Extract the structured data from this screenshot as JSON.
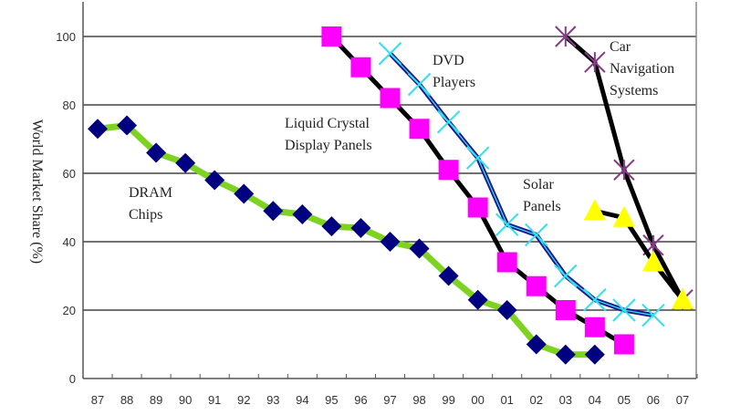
{
  "chart_data": {
    "type": "line",
    "title": "",
    "xlabel": "",
    "ylabel": "World Market Share (%)",
    "ylim": [
      0,
      110
    ],
    "yticks": [
      0,
      20,
      40,
      60,
      80,
      100
    ],
    "grid": true,
    "categories": [
      "87",
      "88",
      "89",
      "90",
      "91",
      "92",
      "93",
      "94",
      "95",
      "96",
      "97",
      "98",
      "99",
      "00",
      "01",
      "02",
      "03",
      "04",
      "05",
      "06",
      "07"
    ],
    "series": [
      {
        "name": "DRAM Chips",
        "label_lines": [
          "DRAM",
          "Chips"
        ],
        "marker": "diamond",
        "line_color": "#7ed321",
        "marker_color": "#000080",
        "values": [
          73,
          74,
          66,
          63,
          58,
          54,
          49,
          48,
          44.5,
          44,
          40,
          38,
          30,
          23,
          20,
          10,
          7,
          7,
          null,
          null,
          null
        ]
      },
      {
        "name": "Liquid Crystal Display Panels",
        "label_lines": [
          "Liquid Crystal",
          "Display Panels"
        ],
        "marker": "square",
        "line_color": "#000000",
        "marker_color": "#ff00ff",
        "values": [
          null,
          null,
          null,
          null,
          null,
          null,
          null,
          null,
          100,
          91,
          82,
          73,
          61,
          50,
          34,
          27,
          20,
          15,
          10,
          null,
          null
        ]
      },
      {
        "name": "DVD Players",
        "label_lines": [
          "DVD",
          "Players"
        ],
        "marker": "x",
        "line_color": "#1a1a8c",
        "marker_color": "#33e0f0",
        "values": [
          null,
          null,
          null,
          null,
          null,
          null,
          null,
          null,
          null,
          null,
          95,
          86,
          75,
          64.5,
          45,
          42,
          30,
          23,
          20,
          18.5,
          null
        ]
      },
      {
        "name": "Car Navigation Systems",
        "label_lines": [
          "Car",
          "Navigation",
          "Systems"
        ],
        "marker": "asterisk",
        "line_color": "#000000",
        "marker_color": "#8a3a8a",
        "values": [
          null,
          null,
          null,
          null,
          null,
          null,
          null,
          null,
          null,
          null,
          null,
          null,
          null,
          null,
          null,
          null,
          100,
          92.5,
          61,
          39,
          23
        ]
      },
      {
        "name": "Solar Panels",
        "label_lines": [
          "Solar",
          "Panels"
        ],
        "marker": "triangle",
        "line_color": "#000000",
        "marker_color": "#ffff00",
        "values": [
          null,
          null,
          null,
          null,
          null,
          null,
          null,
          null,
          null,
          null,
          null,
          null,
          null,
          null,
          null,
          null,
          null,
          49,
          47,
          34,
          23
        ]
      }
    ]
  }
}
